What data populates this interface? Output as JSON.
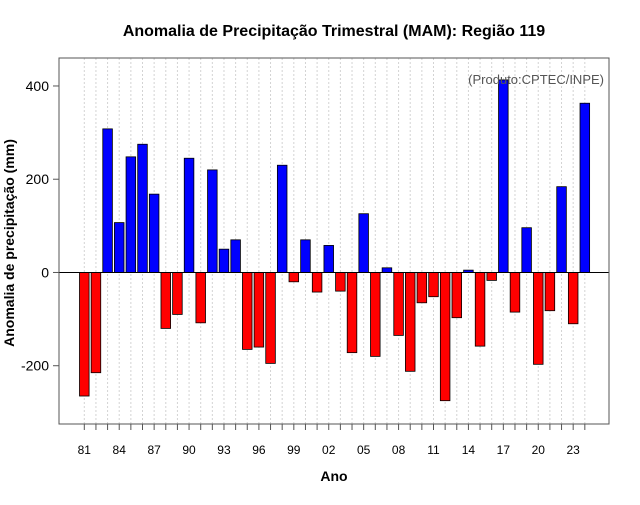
{
  "chart_data": {
    "type": "bar",
    "title": "Anomalia de Precipitação Trimestral (MAM): Região 119",
    "xlabel": "Ano",
    "ylabel": "Anomalia de precipitação (mm)",
    "annotation": "(Produto:CPTEC/INPE)",
    "ylim": [
      -325,
      460
    ],
    "yticks": [
      -200,
      0,
      200,
      400
    ],
    "grid": true,
    "colors": {
      "positive": "#0000ff",
      "negative": "#ff0000",
      "grid": "#d3d3d3",
      "axis": "#555555"
    },
    "categories": [
      "81",
      "82",
      "83",
      "84",
      "85",
      "86",
      "87",
      "88",
      "89",
      "90",
      "91",
      "92",
      "93",
      "94",
      "95",
      "96",
      "97",
      "98",
      "99",
      "00",
      "01",
      "02",
      "03",
      "04",
      "05",
      "06",
      "07",
      "08",
      "09",
      "10",
      "11",
      "12",
      "13",
      "14",
      "15",
      "16",
      "17",
      "18",
      "19",
      "20",
      "21",
      "22",
      "23",
      "24"
    ],
    "xtick_labels": [
      "81",
      "84",
      "87",
      "90",
      "93",
      "96",
      "99",
      "02",
      "05",
      "08",
      "11",
      "14",
      "17",
      "20",
      "23"
    ],
    "values": [
      -265,
      -215,
      308,
      107,
      248,
      275,
      168,
      -120,
      -90,
      245,
      -108,
      220,
      50,
      70,
      -165,
      -160,
      -195,
      230,
      -20,
      70,
      -42,
      58,
      -40,
      -172,
      126,
      -180,
      10,
      -135,
      -212,
      -65,
      -52,
      -275,
      -97,
      5,
      -158,
      -17,
      413,
      -85,
      96,
      -197,
      -82,
      184,
      -110,
      363
    ]
  }
}
